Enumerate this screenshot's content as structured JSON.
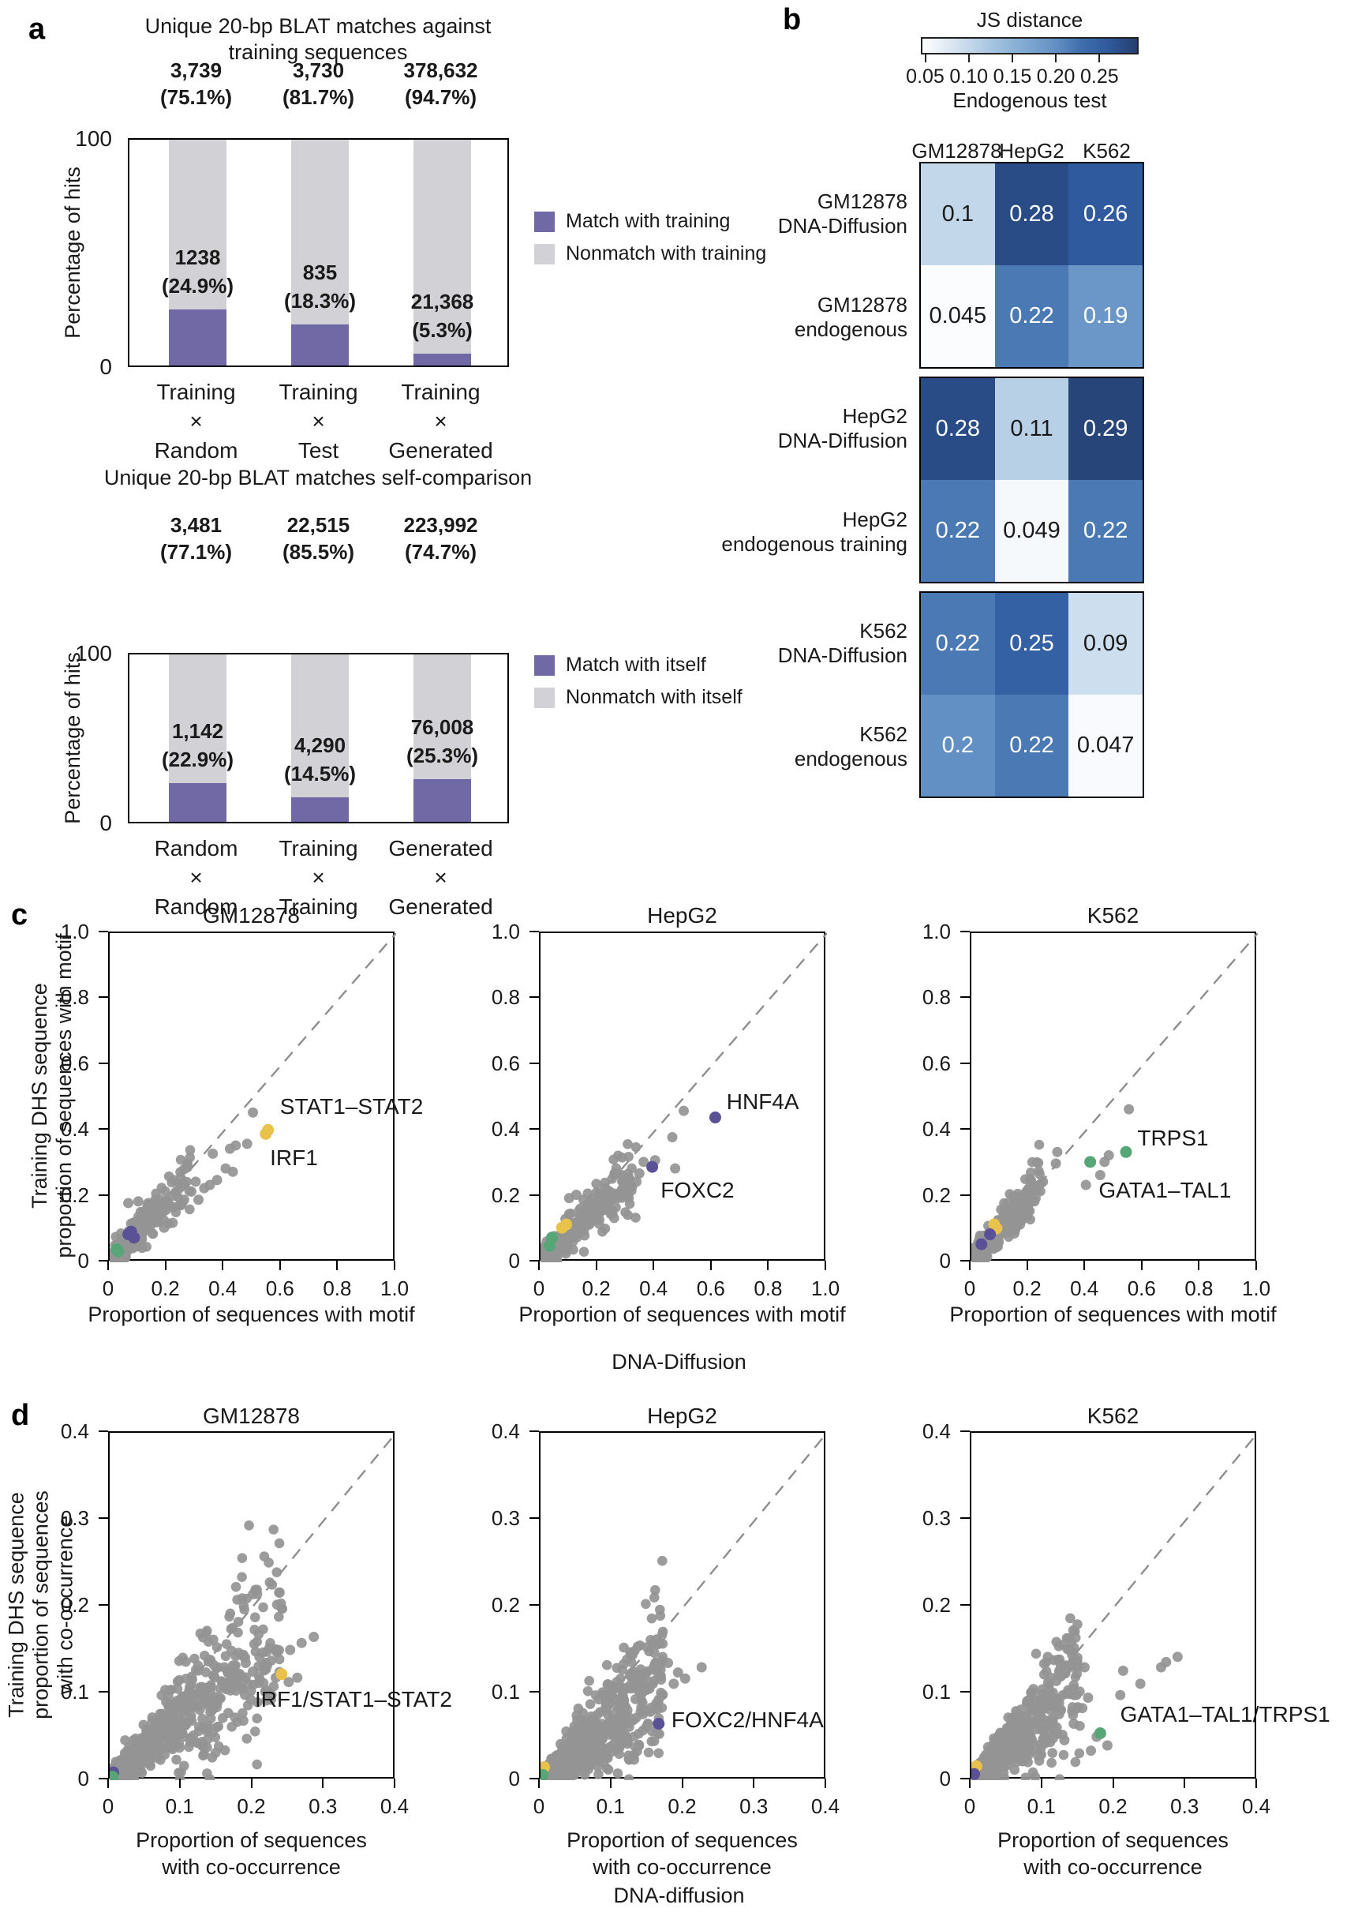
{
  "figure": {
    "letters": {
      "a": "a",
      "b": "b",
      "c": "c",
      "d": "d"
    }
  },
  "panel_c": {
    "ylabel_lines": [
      "Training DHS sequence",
      "proportion of sequences with motif"
    ],
    "xlabel_lines": [
      "Proportion of sequences with motif"
    ],
    "footer": "DNA-Diffusion"
  },
  "panel_d": {
    "ylabel_lines": [
      "Training DHS sequence",
      "proportion of sequences",
      "with co-occurrence"
    ],
    "xlabel_lines": [
      "Proportion of sequences",
      "with co-occurrence"
    ],
    "footer": "DNA-diffusion"
  },
  "colors": {
    "bar_match": "#7168a6",
    "bar_nonmatch": "#d2d1d5",
    "scatter_gray": "rgba(148,148,148,0.92)",
    "yellow": "#e8c24a",
    "purple": "#5b5197",
    "green": "#57a678",
    "diagonal": "#8e8e8e",
    "heatmap_vmin": 0.045,
    "heatmap_vmax": 0.295,
    "heatmap_anchors": [
      [
        0.04,
        [
          255,
          255,
          255
        ]
      ],
      [
        0.1,
        [
          195,
          215,
          234
        ]
      ],
      [
        0.15,
        [
          140,
          180,
          215
        ]
      ],
      [
        0.2,
        [
          99,
          144,
          196
        ]
      ],
      [
        0.23,
        [
          62,
          110,
          172
        ]
      ],
      [
        0.26,
        [
          47,
          91,
          158
        ]
      ],
      [
        0.3,
        [
          38,
          62,
          110
        ]
      ]
    ]
  },
  "chart_data": [
    {
      "id": "blat_training",
      "type": "bar",
      "title_lines": [
        "Unique 20-bp BLAT matches against",
        "training sequences"
      ],
      "ylabel": "Percentage of hits",
      "ylim": [
        0,
        100
      ],
      "ytick_labels": [
        "0",
        "100"
      ],
      "legend": [
        "Match with training",
        "Nonmatch with training"
      ],
      "categories": [
        [
          "Training",
          "×",
          "Random"
        ],
        [
          "Training",
          "×",
          "Test"
        ],
        [
          "Training",
          "×",
          "Generated"
        ]
      ],
      "bars": [
        {
          "match_pct": 24.9,
          "nonmatch_pct": 75.1,
          "top_label": [
            "3,739",
            "(75.1%)"
          ],
          "inner_label": [
            "1238",
            "(24.9%)"
          ]
        },
        {
          "match_pct": 18.3,
          "nonmatch_pct": 81.7,
          "top_label": [
            "3,730",
            "(81.7%)"
          ],
          "inner_label": [
            "835",
            "(18.3%)"
          ]
        },
        {
          "match_pct": 5.3,
          "nonmatch_pct": 94.7,
          "top_label": [
            "378,632",
            "(94.7%)"
          ],
          "inner_label": [
            "21,368",
            "(5.3%)"
          ]
        }
      ]
    },
    {
      "id": "blat_self",
      "type": "bar",
      "title_lines": [
        "Unique 20-bp BLAT matches self-comparison"
      ],
      "ylabel": "Percentage of hits",
      "ylim": [
        0,
        100
      ],
      "ytick_labels": [
        "0",
        "100"
      ],
      "legend": [
        "Match with itself",
        "Nonmatch with itself"
      ],
      "categories": [
        [
          "Random",
          "×",
          "Random"
        ],
        [
          "Training",
          "×",
          "Training"
        ],
        [
          "Generated",
          "×",
          "Generated"
        ]
      ],
      "bars": [
        {
          "match_pct": 22.9,
          "nonmatch_pct": 77.1,
          "top_label": [
            "3,481",
            "(77.1%)"
          ],
          "inner_label": [
            "1,142",
            "(22.9%)"
          ]
        },
        {
          "match_pct": 14.5,
          "nonmatch_pct": 85.5,
          "top_label": [
            "22,515",
            "(85.5%)"
          ],
          "inner_label": [
            "4,290",
            "(14.5%)"
          ]
        },
        {
          "match_pct": 25.3,
          "nonmatch_pct": 74.7,
          "top_label": [
            "223,992",
            "(74.7%)"
          ],
          "inner_label": [
            "76,008",
            "(25.3%)"
          ]
        }
      ]
    },
    {
      "id": "js_heatmap",
      "type": "heatmap",
      "colorbar_title": "JS distance",
      "colorbar_ticks": [
        0.05,
        0.1,
        0.15,
        0.2,
        0.25
      ],
      "subtitle": "Endogenous test",
      "columns": [
        "GM12878",
        "HepG2",
        "K562"
      ],
      "blocks": [
        {
          "rows": [
            {
              "label": [
                "GM12878",
                "DNA-Diffusion"
              ],
              "values": [
                0.1,
                0.28,
                0.26
              ]
            },
            {
              "label": [
                "GM12878",
                "endogenous"
              ],
              "values": [
                0.045,
                0.22,
                0.19
              ]
            }
          ]
        },
        {
          "rows": [
            {
              "label": [
                "HepG2",
                "DNA-Diffusion"
              ],
              "values": [
                0.28,
                0.11,
                0.29
              ]
            },
            {
              "label": [
                "HepG2",
                "endogenous training"
              ],
              "values": [
                0.22,
                0.049,
                0.22
              ]
            }
          ]
        },
        {
          "rows": [
            {
              "label": [
                "K562",
                "DNA-Diffusion"
              ],
              "values": [
                0.22,
                0.25,
                0.09
              ]
            },
            {
              "label": [
                "K562",
                "endogenous"
              ],
              "values": [
                0.2,
                0.22,
                0.047
              ]
            }
          ]
        }
      ]
    },
    {
      "id": "motif_GM12878",
      "type": "scatter",
      "row": "c",
      "title": "GM12878",
      "xlim": [
        0,
        1
      ],
      "ylim": [
        0,
        1
      ],
      "xticks": [
        0,
        0.2,
        0.4,
        0.6,
        0.8,
        1.0
      ],
      "xtick_labels": [
        "0",
        "0.2",
        "0.4",
        "0.6",
        "0.8",
        "1.0"
      ],
      "ytick_labels": [
        "0",
        "0.2",
        "0.4",
        "0.6",
        "0.8",
        "1.0"
      ],
      "cloud": {
        "seed": 101,
        "n": 300,
        "xmax": 0.28,
        "pow": 2.1,
        "slope": 0.95,
        "fan": 0.16,
        "noise": 0.018
      },
      "gray_points": [
        [
          0.5,
          0.455
        ],
        [
          0.48,
          0.36
        ],
        [
          0.44,
          0.355
        ],
        [
          0.42,
          0.345
        ],
        [
          0.36,
          0.33
        ],
        [
          0.405,
          0.285
        ],
        [
          0.43,
          0.275
        ],
        [
          0.35,
          0.235
        ],
        [
          0.375,
          0.25
        ],
        [
          0.3,
          0.245
        ],
        [
          0.33,
          0.225
        ],
        [
          0.285,
          0.215
        ],
        [
          0.26,
          0.19
        ],
        [
          0.245,
          0.175
        ],
        [
          0.31,
          0.19
        ],
        [
          0.215,
          0.17
        ],
        [
          0.2,
          0.185
        ],
        [
          0.175,
          0.19
        ],
        [
          0.155,
          0.175
        ],
        [
          0.135,
          0.18
        ],
        [
          0.1,
          0.185
        ],
        [
          0.065,
          0.18
        ],
        [
          0.22,
          0.12
        ],
        [
          0.19,
          0.105
        ]
      ],
      "highlight_points": [
        {
          "x": 0.545,
          "y": 0.39,
          "color": "yellow"
        },
        {
          "x": 0.553,
          "y": 0.402,
          "color": "yellow"
        },
        {
          "x": 0.065,
          "y": 0.085,
          "color": "purple"
        },
        {
          "x": 0.075,
          "y": 0.093,
          "color": "purple"
        },
        {
          "x": 0.085,
          "y": 0.075,
          "color": "purple"
        },
        {
          "x": 0.025,
          "y": 0.04,
          "color": "green"
        },
        {
          "x": 0.03,
          "y": 0.033,
          "color": "green"
        }
      ],
      "annotations": [
        {
          "text": "STAT1–STAT2",
          "x": 0.6,
          "y": 0.47
        },
        {
          "text": "IRF1",
          "x": 0.565,
          "y": 0.315
        }
      ]
    },
    {
      "id": "motif_HepG2",
      "type": "scatter",
      "row": "c",
      "title": "HepG2",
      "xlim": [
        0,
        1
      ],
      "ylim": [
        0,
        1
      ],
      "xticks": [
        0,
        0.2,
        0.4,
        0.6,
        0.8,
        1.0
      ],
      "xtick_labels": [
        "0",
        "0.2",
        "0.4",
        "0.6",
        "0.8",
        "1.0"
      ],
      "ytick_labels": [
        "0",
        "0.2",
        "0.4",
        "0.6",
        "0.8",
        "1.0"
      ],
      "cloud": {
        "seed": 102,
        "n": 320,
        "xmax": 0.33,
        "pow": 2.1,
        "slope": 0.82,
        "fan": 0.16,
        "noise": 0.02
      },
      "gray_points": [
        [
          0.5,
          0.46
        ],
        [
          0.46,
          0.38
        ],
        [
          0.47,
          0.285
        ],
        [
          0.4,
          0.31
        ],
        [
          0.36,
          0.305
        ],
        [
          0.345,
          0.27
        ],
        [
          0.31,
          0.255
        ],
        [
          0.335,
          0.245
        ],
        [
          0.32,
          0.23
        ],
        [
          0.295,
          0.235
        ],
        [
          0.275,
          0.21
        ],
        [
          0.255,
          0.2
        ],
        [
          0.24,
          0.185
        ],
        [
          0.22,
          0.195
        ],
        [
          0.1,
          0.195
        ],
        [
          0.125,
          0.205
        ],
        [
          0.15,
          0.19
        ]
      ],
      "highlight_points": [
        {
          "x": 0.61,
          "y": 0.44,
          "color": "purple"
        },
        {
          "x": 0.39,
          "y": 0.29,
          "color": "purple"
        },
        {
          "x": 0.075,
          "y": 0.105,
          "color": "yellow"
        },
        {
          "x": 0.09,
          "y": 0.115,
          "color": "yellow"
        },
        {
          "x": 0.04,
          "y": 0.075,
          "color": "green"
        },
        {
          "x": 0.032,
          "y": 0.05,
          "color": "green"
        }
      ],
      "annotations": [
        {
          "text": "HNF4A",
          "x": 0.655,
          "y": 0.485
        },
        {
          "text": "FOXC2",
          "x": 0.425,
          "y": 0.215
        }
      ]
    },
    {
      "id": "motif_K562",
      "type": "scatter",
      "row": "c",
      "title": "K562",
      "xlim": [
        0,
        1
      ],
      "ylim": [
        0,
        1
      ],
      "xticks": [
        0,
        0.2,
        0.4,
        0.6,
        0.8,
        1.0
      ],
      "xtick_labels": [
        "0",
        "0.2",
        "0.4",
        "0.6",
        "0.8",
        "1.0"
      ],
      "ytick_labels": [
        "0",
        "0.2",
        "0.4",
        "0.6",
        "0.8",
        "1.0"
      ],
      "cloud": {
        "seed": 103,
        "n": 300,
        "xmax": 0.24,
        "pow": 2.1,
        "slope": 1.0,
        "fan": 0.18,
        "noise": 0.02
      },
      "gray_points": [
        [
          0.55,
          0.465
        ],
        [
          0.48,
          0.325
        ],
        [
          0.465,
          0.305
        ],
        [
          0.45,
          0.265
        ],
        [
          0.4,
          0.235
        ],
        [
          0.3,
          0.335
        ],
        [
          0.295,
          0.3
        ],
        [
          0.25,
          0.245
        ],
        [
          0.23,
          0.22
        ],
        [
          0.205,
          0.23
        ],
        [
          0.17,
          0.115
        ],
        [
          0.2,
          0.16
        ],
        [
          0.22,
          0.185
        ],
        [
          0.125,
          0.105
        ],
        [
          0.145,
          0.155
        ]
      ],
      "highlight_points": [
        {
          "x": 0.54,
          "y": 0.335,
          "color": "green"
        },
        {
          "x": 0.415,
          "y": 0.305,
          "color": "green"
        },
        {
          "x": 0.08,
          "y": 0.115,
          "color": "yellow"
        },
        {
          "x": 0.088,
          "y": 0.103,
          "color": "yellow"
        },
        {
          "x": 0.065,
          "y": 0.085,
          "color": "purple"
        },
        {
          "x": 0.035,
          "y": 0.055,
          "color": "purple"
        }
      ],
      "annotations": [
        {
          "text": "TRPS1",
          "x": 0.585,
          "y": 0.375
        },
        {
          "text": "GATA1–TAL1",
          "x": 0.45,
          "y": 0.215
        }
      ]
    },
    {
      "id": "cooc_GM12878",
      "type": "scatter",
      "row": "d",
      "title": "GM12878",
      "xlim": [
        0,
        0.4
      ],
      "ylim": [
        0,
        0.4
      ],
      "xticks": [
        0,
        0.1,
        0.2,
        0.3,
        0.4
      ],
      "xtick_labels": [
        "0",
        "0.1",
        "0.2",
        "0.3",
        "0.4"
      ],
      "ytick_labels": [
        "0",
        "0.1",
        "0.2",
        "0.3",
        "0.4"
      ],
      "cloud": {
        "seed": 201,
        "n": 700,
        "xmax": 0.24,
        "pow": 1.9,
        "slope": 0.75,
        "fan": 0.28,
        "noise": 0.012
      },
      "gray_points": [
        [
          0.285,
          0.165
        ],
        [
          0.268,
          0.158
        ],
        [
          0.252,
          0.15
        ],
        [
          0.232,
          0.15
        ],
        [
          0.214,
          0.147
        ],
        [
          0.176,
          0.143
        ],
        [
          0.145,
          0.12
        ],
        [
          0.232,
          0.118
        ],
        [
          0.25,
          0.113
        ],
        [
          0.208,
          0.112
        ],
        [
          0.262,
          0.118
        ],
        [
          0.2,
          0.125
        ],
        [
          0.16,
          0.13
        ],
        [
          0.19,
          0.135
        ]
      ],
      "highlight_points": [
        {
          "x": 0.24,
          "y": 0.122,
          "color": "yellow"
        },
        {
          "x": 0.005,
          "y": 0.009,
          "color": "purple"
        },
        {
          "x": 0.004,
          "y": 0.004,
          "color": "green"
        }
      ],
      "annotations": [
        {
          "text": "IRF1/STAT1–STAT2",
          "x": 0.205,
          "y": 0.092
        }
      ]
    },
    {
      "id": "cooc_HepG2",
      "type": "scatter",
      "row": "d",
      "title": "HepG2",
      "xlim": [
        0,
        0.4
      ],
      "ylim": [
        0,
        0.4
      ],
      "xticks": [
        0,
        0.1,
        0.2,
        0.3,
        0.4
      ],
      "xtick_labels": [
        "0",
        "0.1",
        "0.2",
        "0.3",
        "0.4"
      ],
      "ytick_labels": [
        "0",
        "0.1",
        "0.2",
        "0.3",
        "0.4"
      ],
      "cloud": {
        "seed": 202,
        "n": 700,
        "xmax": 0.17,
        "pow": 1.8,
        "slope": 0.72,
        "fan": 0.3,
        "noise": 0.011
      },
      "gray_points": [
        [
          0.225,
          0.13
        ],
        [
          0.192,
          0.124
        ],
        [
          0.178,
          0.135
        ],
        [
          0.168,
          0.12
        ],
        [
          0.158,
          0.114
        ],
        [
          0.186,
          0.111
        ],
        [
          0.202,
          0.117
        ],
        [
          0.148,
          0.104
        ],
        [
          0.17,
          0.098
        ]
      ],
      "highlight_points": [
        {
          "x": 0.165,
          "y": 0.065,
          "color": "purple"
        },
        {
          "x": 0.005,
          "y": 0.015,
          "color": "yellow"
        },
        {
          "x": 0.003,
          "y": 0.006,
          "color": "green"
        }
      ],
      "annotations": [
        {
          "text": "FOXC2/HNF4A",
          "x": 0.185,
          "y": 0.068
        }
      ]
    },
    {
      "id": "cooc_K562",
      "type": "scatter",
      "row": "d",
      "title": "K562",
      "xlim": [
        0,
        0.4
      ],
      "ylim": [
        0,
        0.4
      ],
      "xticks": [
        0,
        0.1,
        0.2,
        0.3,
        0.4
      ],
      "xtick_labels": [
        "0",
        "0.1",
        "0.2",
        "0.3",
        "0.4"
      ],
      "ytick_labels": [
        "0",
        "0.1",
        "0.2",
        "0.3",
        "0.4"
      ],
      "cloud": {
        "seed": 203,
        "n": 600,
        "xmax": 0.15,
        "pow": 1.8,
        "slope": 0.78,
        "fan": 0.3,
        "noise": 0.012
      },
      "gray_points": [
        [
          0.288,
          0.142
        ],
        [
          0.272,
          0.136
        ],
        [
          0.265,
          0.13
        ],
        [
          0.236,
          0.111
        ],
        [
          0.212,
          0.126
        ],
        [
          0.208,
          0.098
        ],
        [
          0.148,
          0.141
        ],
        [
          0.158,
          0.13
        ],
        [
          0.163,
          0.095
        ],
        [
          0.19,
          0.04
        ],
        [
          0.167,
          0.034
        ],
        [
          0.13,
          0.046
        ],
        [
          0.12,
          0.053
        ],
        [
          0.143,
          0.065
        ],
        [
          0.155,
          0.083
        ],
        [
          0.175,
          0.05
        ]
      ],
      "highlight_points": [
        {
          "x": 0.18,
          "y": 0.054,
          "color": "green"
        },
        {
          "x": 0.007,
          "y": 0.016,
          "color": "yellow"
        },
        {
          "x": 0.004,
          "y": 0.007,
          "color": "purple"
        }
      ],
      "annotations": [
        {
          "text": "GATA1–TAL1/TRPS1",
          "x": 0.21,
          "y": 0.075
        }
      ]
    }
  ]
}
